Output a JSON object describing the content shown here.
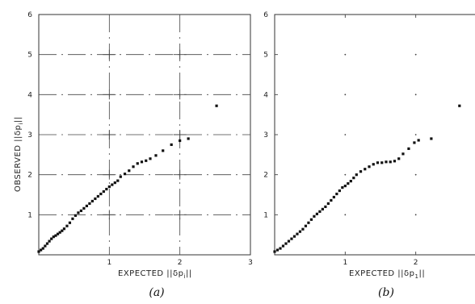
{
  "chart_data": [
    {
      "type": "scatter",
      "panel_label": "(a)",
      "xlabel": "EXPECTED ||δp",
      "xlabel_sub": "i",
      "xlabel_end": "||",
      "ylabel": "OBSERVED ||δp",
      "ylabel_sub": "i",
      "ylabel_end": "||",
      "xlim": [
        0,
        3
      ],
      "ylim": [
        0,
        6
      ],
      "xticks": [
        "1",
        "2",
        "3"
      ],
      "yticks": [
        "1",
        "2",
        "3",
        "4",
        "5",
        "6"
      ],
      "grid": true,
      "points": {
        "x": [
          0.0,
          0.03,
          0.06,
          0.09,
          0.12,
          0.15,
          0.18,
          0.21,
          0.24,
          0.27,
          0.3,
          0.33,
          0.36,
          0.4,
          0.44,
          0.48,
          0.52,
          0.56,
          0.6,
          0.64,
          0.68,
          0.72,
          0.76,
          0.8,
          0.84,
          0.88,
          0.92,
          0.96,
          1.0,
          1.04,
          1.08,
          1.12,
          1.16,
          1.22,
          1.28,
          1.34,
          1.4,
          1.46,
          1.52,
          1.58,
          1.66,
          1.76,
          1.88,
          2.0,
          2.12,
          2.52
        ],
        "y": [
          0.08,
          0.12,
          0.16,
          0.22,
          0.28,
          0.34,
          0.4,
          0.45,
          0.48,
          0.52,
          0.56,
          0.6,
          0.65,
          0.72,
          0.8,
          0.9,
          0.98,
          1.05,
          1.1,
          1.16,
          1.22,
          1.28,
          1.34,
          1.4,
          1.46,
          1.52,
          1.58,
          1.64,
          1.7,
          1.75,
          1.8,
          1.85,
          1.95,
          2.02,
          2.1,
          2.2,
          2.28,
          2.32,
          2.35,
          2.4,
          2.48,
          2.6,
          2.75,
          2.85,
          2.9,
          3.72
        ]
      }
    },
    {
      "type": "scatter",
      "panel_label": "(b)",
      "xlabel": "EXPECTED ||δp",
      "xlabel_sub": "1",
      "xlabel_end": "||",
      "xlim": [
        0,
        3
      ],
      "ylim": [
        0,
        6
      ],
      "xticks": [
        "1",
        "2"
      ],
      "yticks": [
        "1",
        "2",
        "3",
        "4",
        "5",
        "6"
      ],
      "grid": false,
      "points": {
        "x": [
          0.0,
          0.04,
          0.08,
          0.12,
          0.16,
          0.2,
          0.24,
          0.28,
          0.32,
          0.36,
          0.4,
          0.44,
          0.48,
          0.52,
          0.56,
          0.6,
          0.64,
          0.68,
          0.72,
          0.76,
          0.8,
          0.84,
          0.88,
          0.92,
          0.96,
          1.0,
          1.04,
          1.08,
          1.12,
          1.16,
          1.22,
          1.28,
          1.34,
          1.4,
          1.46,
          1.52,
          1.58,
          1.64,
          1.7,
          1.76,
          1.82,
          1.9,
          1.98,
          2.04,
          2.22,
          2.62
        ],
        "y": [
          0.08,
          0.12,
          0.16,
          0.22,
          0.28,
          0.34,
          0.4,
          0.46,
          0.52,
          0.58,
          0.64,
          0.72,
          0.8,
          0.88,
          0.96,
          1.02,
          1.08,
          1.14,
          1.2,
          1.28,
          1.36,
          1.44,
          1.52,
          1.6,
          1.68,
          1.72,
          1.78,
          1.84,
          1.92,
          2.0,
          2.08,
          2.14,
          2.2,
          2.26,
          2.3,
          2.3,
          2.32,
          2.32,
          2.34,
          2.4,
          2.52,
          2.65,
          2.8,
          2.86,
          2.9,
          3.72
        ]
      }
    }
  ]
}
